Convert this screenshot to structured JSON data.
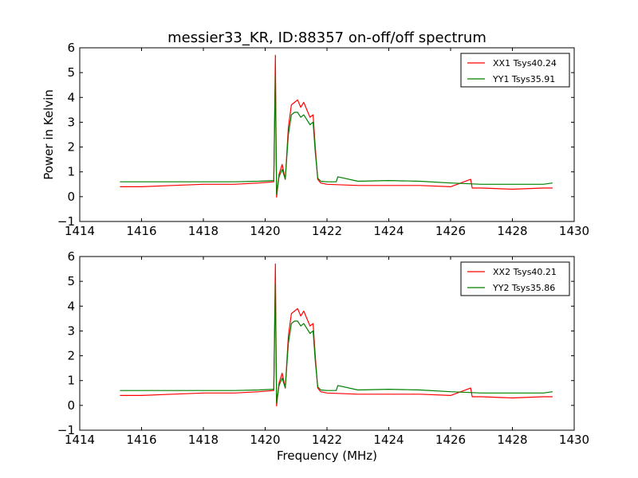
{
  "figure": {
    "title": "messier33_KR, ID:88357 on-off/off spectrum",
    "ylabel": "Power in Kelvin",
    "xlabel": "Frequency (MHz)"
  },
  "chart_data": [
    {
      "type": "line",
      "title": "messier33_KR, ID:88357 on-off/off spectrum",
      "xlabel": "",
      "ylabel": "Power in Kelvin",
      "xlim": [
        1414,
        1430
      ],
      "ylim": [
        -1,
        6
      ],
      "x_ticks": [
        1414,
        1416,
        1418,
        1420,
        1422,
        1424,
        1426,
        1428,
        1430
      ],
      "x_tick_labels": [
        "1414",
        "1416",
        "1418",
        "1420",
        "1422",
        "1424",
        "1426",
        "1428",
        "1430"
      ],
      "y_ticks": [
        -1,
        0,
        1,
        2,
        3,
        4,
        5,
        6
      ],
      "y_tick_labels": [
        "−1",
        "0",
        "1",
        "2",
        "3",
        "4",
        "5",
        "6"
      ],
      "grid": false,
      "legend": "top-right",
      "series": [
        {
          "name": "XX1 Tsys40.24",
          "color": "#ff0000",
          "x": [
            1415.3,
            1416.0,
            1417.0,
            1418.0,
            1419.0,
            1419.8,
            1420.28,
            1420.33,
            1420.37,
            1420.45,
            1420.55,
            1420.65,
            1420.75,
            1420.85,
            1420.95,
            1421.05,
            1421.15,
            1421.25,
            1421.35,
            1421.45,
            1421.55,
            1421.62,
            1421.7,
            1421.8,
            1422.0,
            1423.0,
            1424.0,
            1425.0,
            1426.0,
            1426.65,
            1426.7,
            1427.0,
            1428.0,
            1429.0,
            1429.3
          ],
          "values": [
            0.4,
            0.4,
            0.45,
            0.5,
            0.5,
            0.55,
            0.6,
            5.7,
            -0.02,
            0.9,
            1.3,
            0.7,
            2.8,
            3.7,
            3.8,
            3.9,
            3.6,
            3.8,
            3.5,
            3.2,
            3.3,
            2.0,
            0.7,
            0.55,
            0.5,
            0.45,
            0.45,
            0.45,
            0.4,
            0.7,
            0.35,
            0.35,
            0.3,
            0.35,
            0.35
          ]
        },
        {
          "name": "YY1 Tsys35.91",
          "color": "#008000",
          "x": [
            1415.3,
            1416.0,
            1417.0,
            1418.0,
            1419.0,
            1419.8,
            1420.28,
            1420.33,
            1420.37,
            1420.45,
            1420.55,
            1420.65,
            1420.75,
            1420.85,
            1420.95,
            1421.05,
            1421.15,
            1421.25,
            1421.35,
            1421.45,
            1421.55,
            1421.62,
            1421.7,
            1421.8,
            1422.0,
            1422.3,
            1422.35,
            1423.0,
            1424.0,
            1425.0,
            1426.0,
            1427.0,
            1428.0,
            1429.0,
            1429.3
          ],
          "values": [
            0.6,
            0.6,
            0.6,
            0.6,
            0.6,
            0.62,
            0.65,
            4.9,
            0.1,
            0.8,
            1.1,
            0.7,
            2.5,
            3.3,
            3.4,
            3.4,
            3.2,
            3.3,
            3.1,
            2.9,
            3.0,
            1.8,
            0.75,
            0.62,
            0.6,
            0.6,
            0.8,
            0.62,
            0.65,
            0.62,
            0.55,
            0.5,
            0.5,
            0.5,
            0.55
          ]
        }
      ]
    },
    {
      "type": "line",
      "title": "",
      "xlabel": "Frequency (MHz)",
      "ylabel": "",
      "xlim": [
        1414,
        1430
      ],
      "ylim": [
        -1,
        6
      ],
      "x_ticks": [
        1414,
        1416,
        1418,
        1420,
        1422,
        1424,
        1426,
        1428,
        1430
      ],
      "x_tick_labels": [
        "1414",
        "1416",
        "1418",
        "1420",
        "1422",
        "1424",
        "1426",
        "1428",
        "1430"
      ],
      "y_ticks": [
        -1,
        0,
        1,
        2,
        3,
        4,
        5,
        6
      ],
      "y_tick_labels": [
        "−1",
        "0",
        "1",
        "2",
        "3",
        "4",
        "5",
        "6"
      ],
      "grid": false,
      "legend": "top-right",
      "series": [
        {
          "name": "XX2 Tsys40.21",
          "color": "#ff0000",
          "x": [
            1415.3,
            1416.0,
            1417.0,
            1418.0,
            1419.0,
            1419.8,
            1420.28,
            1420.33,
            1420.37,
            1420.45,
            1420.55,
            1420.65,
            1420.75,
            1420.85,
            1420.95,
            1421.05,
            1421.15,
            1421.25,
            1421.35,
            1421.45,
            1421.55,
            1421.62,
            1421.7,
            1421.8,
            1422.0,
            1423.0,
            1424.0,
            1425.0,
            1426.0,
            1426.65,
            1426.7,
            1427.0,
            1428.0,
            1429.0,
            1429.3
          ],
          "values": [
            0.4,
            0.4,
            0.45,
            0.5,
            0.5,
            0.55,
            0.6,
            5.7,
            -0.02,
            0.9,
            1.3,
            0.7,
            2.8,
            3.7,
            3.8,
            3.9,
            3.6,
            3.8,
            3.5,
            3.2,
            3.3,
            2.0,
            0.7,
            0.55,
            0.5,
            0.45,
            0.45,
            0.45,
            0.4,
            0.7,
            0.35,
            0.35,
            0.3,
            0.35,
            0.35
          ]
        },
        {
          "name": "YY2 Tsys35.86",
          "color": "#008000",
          "x": [
            1415.3,
            1416.0,
            1417.0,
            1418.0,
            1419.0,
            1419.8,
            1420.28,
            1420.33,
            1420.37,
            1420.45,
            1420.55,
            1420.65,
            1420.75,
            1420.85,
            1420.95,
            1421.05,
            1421.15,
            1421.25,
            1421.35,
            1421.45,
            1421.55,
            1421.62,
            1421.7,
            1421.8,
            1422.0,
            1422.3,
            1422.35,
            1423.0,
            1424.0,
            1425.0,
            1426.0,
            1427.0,
            1428.0,
            1429.0,
            1429.3
          ],
          "values": [
            0.6,
            0.6,
            0.6,
            0.6,
            0.6,
            0.62,
            0.65,
            4.9,
            0.1,
            0.8,
            1.1,
            0.7,
            2.5,
            3.3,
            3.4,
            3.4,
            3.2,
            3.3,
            3.1,
            2.9,
            3.0,
            1.8,
            0.75,
            0.62,
            0.6,
            0.6,
            0.8,
            0.62,
            0.65,
            0.62,
            0.55,
            0.5,
            0.5,
            0.5,
            0.55
          ]
        }
      ]
    }
  ]
}
